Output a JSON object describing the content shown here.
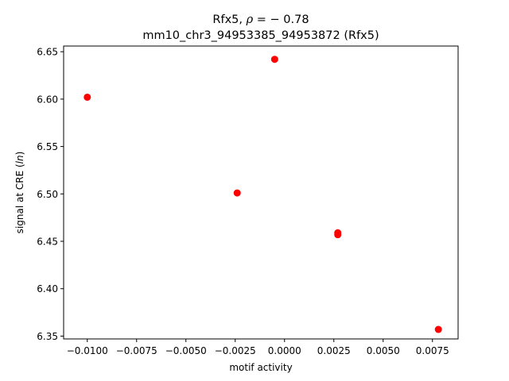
{
  "chart_data": {
    "type": "scatter",
    "title_line1_prefix": "Rfx5, ",
    "title_line1_symbol": "ρ",
    "title_line1_suffix": " = − 0.78",
    "title_line2": "mm10_chr3_94953385_94953872 (Rfx5)",
    "xlabel": "motif activity",
    "ylabel_prefix": "signal at CRE (",
    "ylabel_italic": "ln",
    "ylabel_suffix": ")",
    "xlim": [
      -0.0112,
      0.0088
    ],
    "ylim": [
      6.347,
      6.656
    ],
    "xticks": [
      -0.01,
      -0.0075,
      -0.005,
      -0.0025,
      0.0,
      0.0025,
      0.005,
      0.0075
    ],
    "xtick_labels": [
      "−0.0100",
      "−0.0075",
      "−0.0050",
      "−0.0025",
      "0.0000",
      "0.0025",
      "0.0050",
      "0.0075"
    ],
    "yticks": [
      6.35,
      6.4,
      6.45,
      6.5,
      6.55,
      6.6,
      6.65
    ],
    "ytick_labels": [
      "6.35",
      "6.40",
      "6.45",
      "6.50",
      "6.55",
      "6.60",
      "6.65"
    ],
    "marker_color": "#ff0000",
    "points": [
      {
        "x": -0.01,
        "y": 6.602
      },
      {
        "x": -0.0005,
        "y": 6.642
      },
      {
        "x": -0.0024,
        "y": 6.501
      },
      {
        "x": 0.0027,
        "y": 6.459
      },
      {
        "x": 0.0027,
        "y": 6.457
      },
      {
        "x": 0.0078,
        "y": 6.357
      }
    ]
  }
}
